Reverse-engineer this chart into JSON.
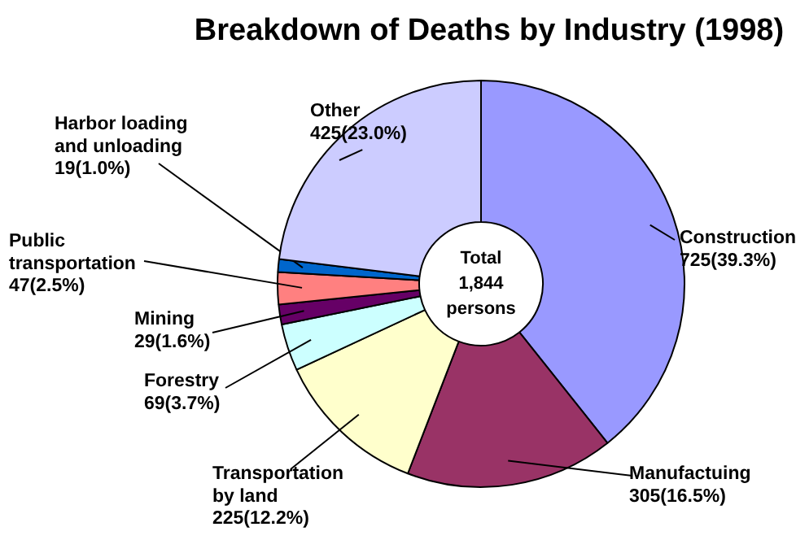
{
  "chart_data": {
    "type": "donut",
    "title": "Breakdown of Deaths by Industry (1998)",
    "categories": [
      "Construction",
      "Manufactuing",
      "Transportation\nby land",
      "Forestry",
      "Mining",
      "Public\ntransportation",
      "Harbor loading\nand unloading",
      "Other"
    ],
    "values": [
      725,
      305,
      225,
      69,
      29,
      47,
      19,
      425
    ],
    "colors": [
      "#9999ff",
      "#993366",
      "#ffffcc",
      "#ccffff",
      "#660066",
      "#ff8080",
      "#0066cc",
      "#ccccff"
    ],
    "value_labels": [
      "725(39.3%)",
      "305(16.5%)",
      "225(12.2%)",
      "69(3.7%)",
      "29(1.6%)",
      "47(2.5%)",
      "19(1.0%)",
      "425(23.0%)"
    ],
    "annotations": [
      "Total\n1,844\npersons"
    ]
  }
}
